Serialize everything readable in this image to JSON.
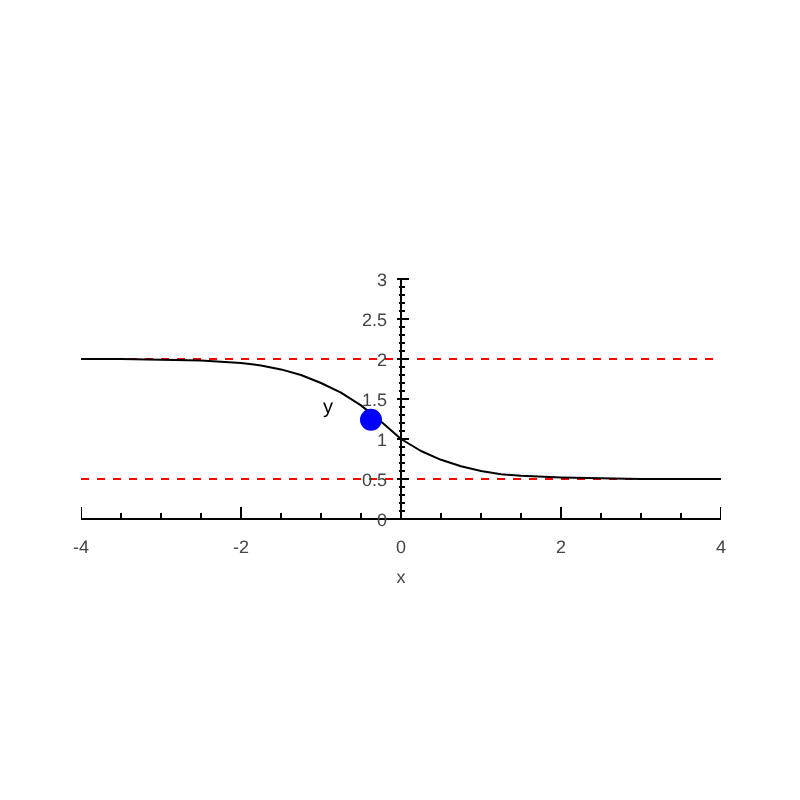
{
  "chart_data": {
    "type": "line",
    "xlabel": "x",
    "xlim": [
      -4,
      4
    ],
    "ylim": [
      0,
      3
    ],
    "xticks": [
      -4,
      -2,
      0,
      2,
      4
    ],
    "yticks": [
      0,
      0.5,
      1,
      1.5,
      2,
      2.5,
      3
    ],
    "grid": false,
    "series": [
      {
        "name": "y",
        "color": "#000000",
        "x": [
          -4,
          -3.5,
          -3,
          -2.5,
          -2,
          -1.75,
          -1.5,
          -1.25,
          -1,
          -0.75,
          -0.5,
          -0.25,
          0,
          0.25,
          0.5,
          0.75,
          1,
          1.25,
          1.5,
          2,
          2.5,
          3,
          3.5,
          4
        ],
        "values": [
          2.0,
          2.0,
          1.99,
          1.98,
          1.95,
          1.92,
          1.87,
          1.8,
          1.7,
          1.58,
          1.42,
          1.22,
          1.0,
          0.85,
          0.74,
          0.66,
          0.6,
          0.56,
          0.54,
          0.52,
          0.51,
          0.5,
          0.5,
          0.5
        ]
      },
      {
        "type": "scatter",
        "color": "#0000ff",
        "x": [
          -0.375
        ],
        "values": [
          1.24
        ]
      }
    ],
    "ref_lines": [
      {
        "axis": "y",
        "value": 2,
        "color": "#ff0000",
        "line_style": "dashed"
      },
      {
        "axis": "y",
        "value": 0.5,
        "color": "#ff0000",
        "line_style": "dashed"
      }
    ]
  }
}
